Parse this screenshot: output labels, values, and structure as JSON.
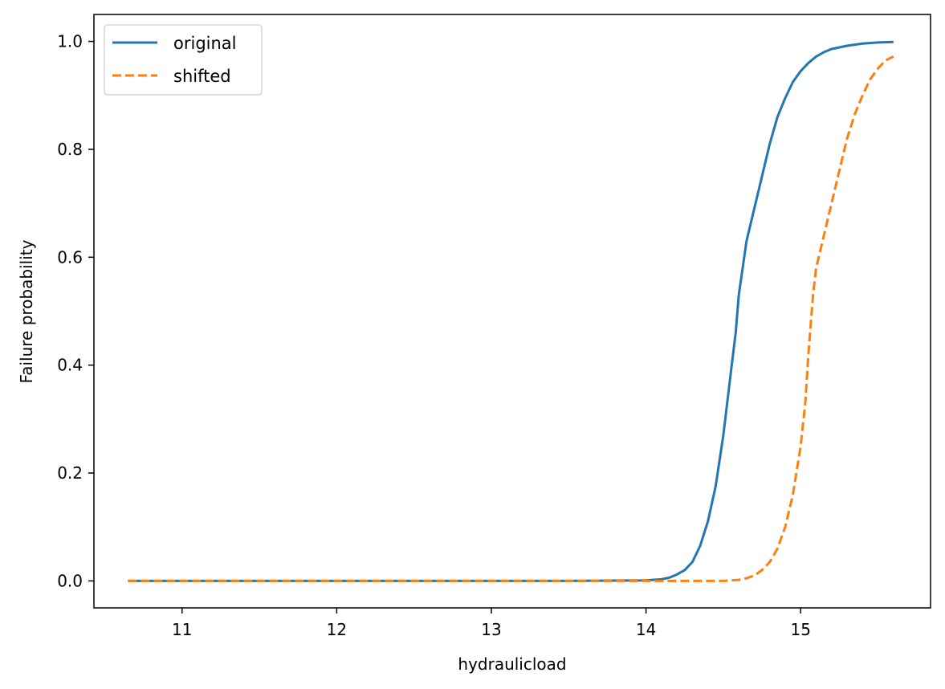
{
  "chart_data": {
    "type": "line",
    "title": "",
    "xlabel": "hydraulicload",
    "ylabel": "Failure probability",
    "xlim": [
      10.43,
      15.84
    ],
    "ylim": [
      -0.05,
      1.05
    ],
    "xticks": [
      11,
      12,
      13,
      14,
      15
    ],
    "xtick_labels": [
      "11",
      "12",
      "13",
      "14",
      "15"
    ],
    "yticks": [
      0.0,
      0.2,
      0.4,
      0.6,
      0.8,
      1.0
    ],
    "ytick_labels": [
      "0.0",
      "0.2",
      "0.4",
      "0.6",
      "0.8",
      "1.0"
    ],
    "grid": false,
    "legend_position": "top-left",
    "series": [
      {
        "name": "original",
        "color": "#1f77b4",
        "style": "solid",
        "points": [
          [
            10.65,
            0.0
          ],
          [
            13.5,
            0.0
          ],
          [
            14.0,
            0.001
          ],
          [
            14.1,
            0.003
          ],
          [
            14.15,
            0.006
          ],
          [
            14.2,
            0.012
          ],
          [
            14.25,
            0.02
          ],
          [
            14.3,
            0.035
          ],
          [
            14.35,
            0.065
          ],
          [
            14.4,
            0.11
          ],
          [
            14.45,
            0.175
          ],
          [
            14.5,
            0.27
          ],
          [
            14.55,
            0.39
          ],
          [
            14.58,
            0.46
          ],
          [
            14.6,
            0.53
          ],
          [
            14.63,
            0.59
          ],
          [
            14.65,
            0.63
          ],
          [
            14.7,
            0.69
          ],
          [
            14.75,
            0.75
          ],
          [
            14.8,
            0.81
          ],
          [
            14.85,
            0.86
          ],
          [
            14.9,
            0.895
          ],
          [
            14.95,
            0.925
          ],
          [
            15.0,
            0.945
          ],
          [
            15.05,
            0.96
          ],
          [
            15.1,
            0.972
          ],
          [
            15.15,
            0.98
          ],
          [
            15.2,
            0.986
          ],
          [
            15.3,
            0.992
          ],
          [
            15.4,
            0.996
          ],
          [
            15.5,
            0.998
          ],
          [
            15.6,
            0.999
          ]
        ]
      },
      {
        "name": "shifted",
        "color": "#ff7f0e",
        "style": "dashed",
        "points": [
          [
            10.65,
            0.0
          ],
          [
            14.0,
            0.0
          ],
          [
            14.5,
            0.0
          ],
          [
            14.55,
            0.001
          ],
          [
            14.6,
            0.002
          ],
          [
            14.65,
            0.005
          ],
          [
            14.7,
            0.01
          ],
          [
            14.75,
            0.02
          ],
          [
            14.8,
            0.035
          ],
          [
            14.85,
            0.06
          ],
          [
            14.9,
            0.1
          ],
          [
            14.95,
            0.16
          ],
          [
            15.0,
            0.25
          ],
          [
            15.03,
            0.33
          ],
          [
            15.05,
            0.42
          ],
          [
            15.08,
            0.53
          ],
          [
            15.1,
            0.58
          ],
          [
            15.15,
            0.64
          ],
          [
            15.2,
            0.7
          ],
          [
            15.25,
            0.76
          ],
          [
            15.3,
            0.82
          ],
          [
            15.35,
            0.865
          ],
          [
            15.4,
            0.9
          ],
          [
            15.45,
            0.93
          ],
          [
            15.5,
            0.95
          ],
          [
            15.55,
            0.965
          ],
          [
            15.6,
            0.972
          ]
        ]
      }
    ]
  }
}
